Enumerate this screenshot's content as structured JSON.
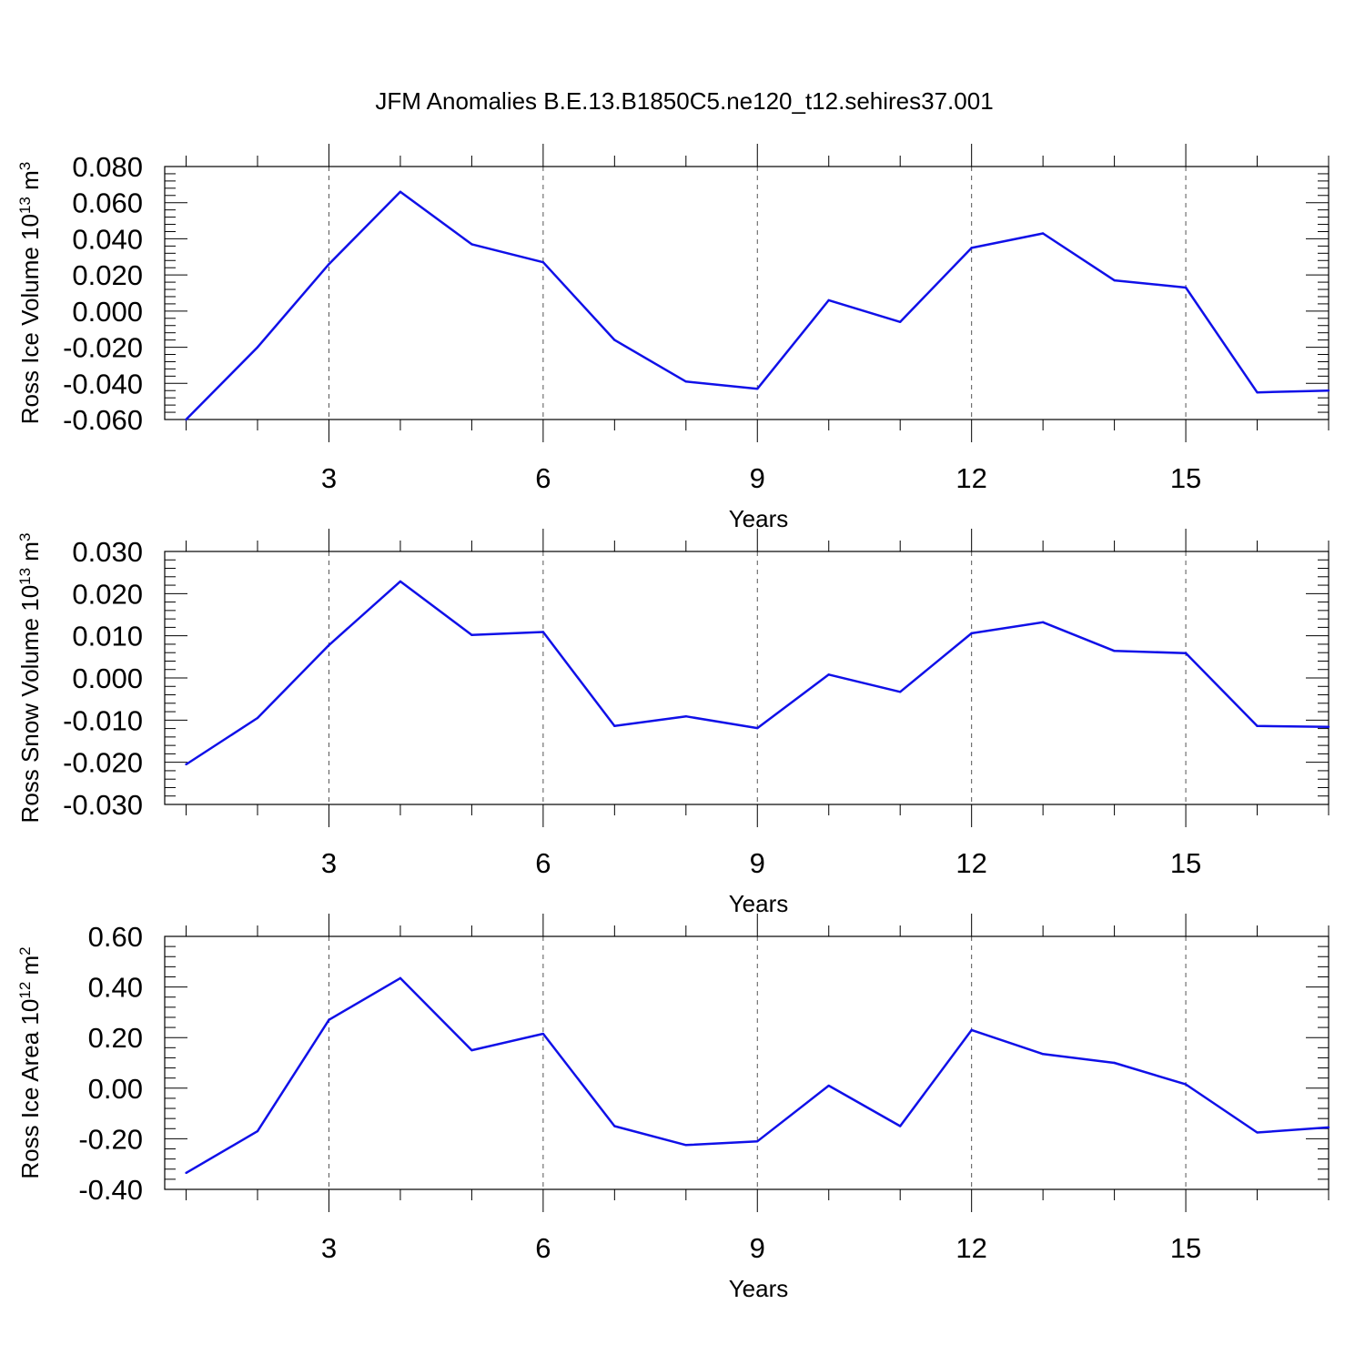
{
  "title": "JFM Anomalies B.E.13.B1850C5.ne120_t12.sehires37.001",
  "chart_data": [
    {
      "type": "line",
      "title": "JFM Anomalies B.E.13.B1850C5.ne120_t12.sehires37.001",
      "xlabel": "Years",
      "ylabel": "Ross Ice Volume 10",
      "ylabel_exp": "13",
      "ylabel_unit": " m",
      "ylabel_unit_exp": "3",
      "x": [
        1,
        2,
        3,
        4,
        5,
        6,
        7,
        8,
        9,
        10,
        11,
        12,
        13,
        14,
        15,
        16,
        17
      ],
      "values": [
        -0.06,
        -0.02,
        0.026,
        0.066,
        0.037,
        0.027,
        -0.016,
        -0.039,
        -0.043,
        0.006,
        -0.006,
        0.035,
        0.043,
        0.017,
        0.013,
        -0.045,
        -0.044
      ],
      "xlim": [
        0.7,
        17
      ],
      "ylim": [
        -0.06,
        0.08
      ],
      "xticks": [
        3,
        6,
        9,
        12,
        15
      ],
      "xtick_labels": [
        "3",
        "6",
        "9",
        "12",
        "15"
      ],
      "yticks": [
        -0.06,
        -0.04,
        -0.02,
        0.0,
        0.02,
        0.04,
        0.06,
        0.08
      ],
      "ytick_labels": [
        "-0.060",
        "-0.040",
        "-0.020",
        "0.000",
        "0.020",
        "0.040",
        "0.060",
        "0.080"
      ],
      "grid": "vertical dashed at major x ticks",
      "line_color": "#1010e8"
    },
    {
      "type": "line",
      "xlabel": "Years",
      "ylabel": "Ross Snow Volume 10",
      "ylabel_exp": "13",
      "ylabel_unit": " m",
      "ylabel_unit_exp": "3",
      "x": [
        1,
        2,
        3,
        4,
        5,
        6,
        7,
        8,
        9,
        10,
        11,
        12,
        13,
        14,
        15,
        16,
        17
      ],
      "values": [
        -0.0205,
        -0.0095,
        0.0078,
        0.0229,
        0.0102,
        0.0109,
        -0.0114,
        -0.0091,
        -0.0119,
        0.0008,
        -0.0033,
        0.0106,
        0.0132,
        0.0064,
        0.0059,
        -0.0114,
        -0.0116
      ],
      "xlim": [
        0.7,
        17
      ],
      "ylim": [
        -0.03,
        0.03
      ],
      "xticks": [
        3,
        6,
        9,
        12,
        15
      ],
      "xtick_labels": [
        "3",
        "6",
        "9",
        "12",
        "15"
      ],
      "yticks": [
        -0.03,
        -0.02,
        -0.01,
        0.0,
        0.01,
        0.02,
        0.03
      ],
      "ytick_labels": [
        "-0.030",
        "-0.020",
        "-0.010",
        "0.000",
        "0.010",
        "0.020",
        "0.030"
      ],
      "grid": "vertical dashed at major x ticks",
      "line_color": "#1010e8"
    },
    {
      "type": "line",
      "xlabel": "Years",
      "ylabel": "Ross Ice Area 10",
      "ylabel_exp": "12",
      "ylabel_unit": " m",
      "ylabel_unit_exp": "2",
      "x": [
        1,
        2,
        3,
        4,
        5,
        6,
        7,
        8,
        9,
        10,
        11,
        12,
        13,
        14,
        15,
        16,
        17
      ],
      "values": [
        -0.335,
        -0.17,
        0.27,
        0.435,
        0.15,
        0.215,
        -0.15,
        -0.225,
        -0.21,
        0.01,
        -0.15,
        0.23,
        0.135,
        0.1,
        0.015,
        -0.175,
        -0.155
      ],
      "xlim": [
        0.7,
        17
      ],
      "ylim": [
        -0.4,
        0.6
      ],
      "xticks": [
        3,
        6,
        9,
        12,
        15
      ],
      "xtick_labels": [
        "3",
        "6",
        "9",
        "12",
        "15"
      ],
      "yticks": [
        -0.4,
        -0.2,
        0.0,
        0.2,
        0.4,
        0.6
      ],
      "ytick_labels": [
        "-0.40",
        "-0.20",
        "0.00",
        "0.20",
        "0.40",
        "0.60"
      ],
      "grid": "vertical dashed at major x ticks",
      "line_color": "#1010e8"
    }
  ]
}
